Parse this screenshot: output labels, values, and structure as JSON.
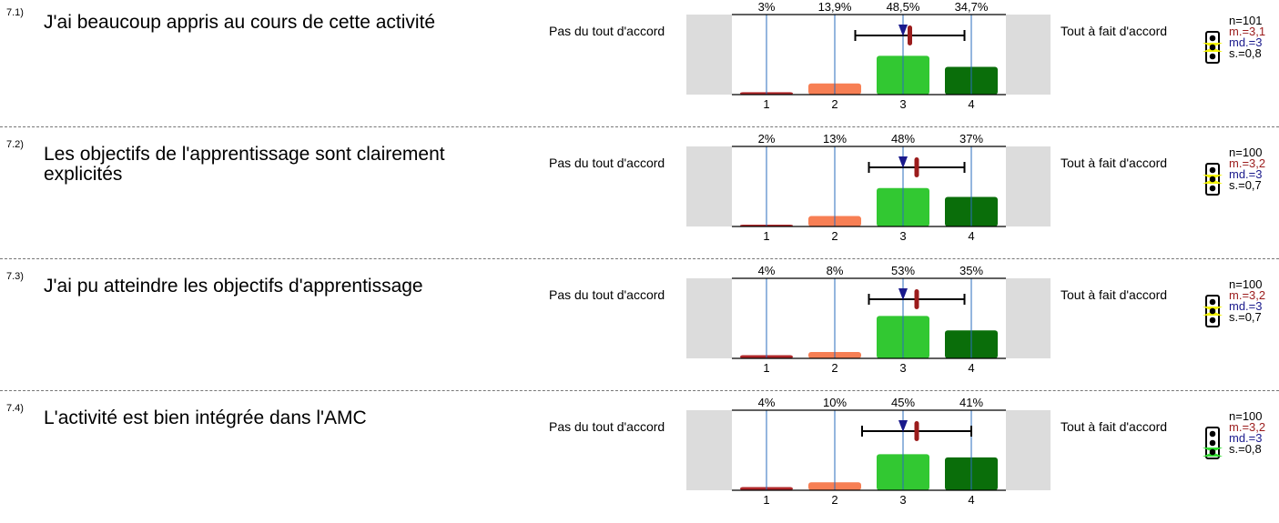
{
  "scale": {
    "left_label": "Pas du tout d'accord",
    "right_label": "Tout à fait d'accord",
    "ticks": [
      "1",
      "2",
      "3",
      "4"
    ]
  },
  "colors": {
    "bars": [
      "#b0282a",
      "#f77f54",
      "#32c832",
      "#0a6e0a"
    ],
    "mean": "#9b1c1c",
    "median": "#1a1a8c",
    "gridline": "#2a6ebe",
    "panel": "#dcdcdc"
  },
  "chart_data": [
    {
      "type": "bar",
      "question_number": "7.1)",
      "question": "J'ai beaucoup  appris au cours de cette activité",
      "categories": [
        "1",
        "2",
        "3",
        "4"
      ],
      "values": [
        3,
        13.9,
        48.5,
        34.7
      ],
      "value_labels": [
        "3%",
        "13,9%",
        "48,5%",
        "34,7%"
      ],
      "ylim": [
        0,
        100
      ],
      "mean": 3.1,
      "median": 3,
      "sd": 0.8,
      "stats": {
        "n": "n=101",
        "mean": "m.=3,1",
        "median": "md.=3",
        "sd": "s.=0,8"
      },
      "traffic_light": "yellow"
    },
    {
      "type": "bar",
      "question_number": "7.2)",
      "question": "Les objectifs de l'apprentissage sont clairement explicités",
      "categories": [
        "1",
        "2",
        "3",
        "4"
      ],
      "values": [
        2,
        13,
        48,
        37
      ],
      "value_labels": [
        "2%",
        "13%",
        "48%",
        "37%"
      ],
      "ylim": [
        0,
        100
      ],
      "mean": 3.2,
      "median": 3,
      "sd": 0.7,
      "stats": {
        "n": "n=100",
        "mean": "m.=3,2",
        "median": "md.=3",
        "sd": "s.=0,7"
      },
      "traffic_light": "yellow"
    },
    {
      "type": "bar",
      "question_number": "7.3)",
      "question": "J'ai pu atteindre les objectifs d'apprentissage",
      "categories": [
        "1",
        "2",
        "3",
        "4"
      ],
      "values": [
        4,
        8,
        53,
        35
      ],
      "value_labels": [
        "4%",
        "8%",
        "53%",
        "35%"
      ],
      "ylim": [
        0,
        100
      ],
      "mean": 3.2,
      "median": 3,
      "sd": 0.7,
      "stats": {
        "n": "n=100",
        "mean": "m.=3,2",
        "median": "md.=3",
        "sd": "s.=0,7"
      },
      "traffic_light": "yellow"
    },
    {
      "type": "bar",
      "question_number": "7.4)",
      "question": "L'activité est bien intégrée dans l'AMC",
      "categories": [
        "1",
        "2",
        "3",
        "4"
      ],
      "values": [
        4,
        10,
        45,
        41
      ],
      "value_labels": [
        "4%",
        "10%",
        "45%",
        "41%"
      ],
      "ylim": [
        0,
        100
      ],
      "mean": 3.2,
      "median": 3,
      "sd": 0.8,
      "stats": {
        "n": "n=100",
        "mean": "m.=3,2",
        "median": "md.=3",
        "sd": "s.=0,8"
      },
      "traffic_light": "green"
    }
  ]
}
